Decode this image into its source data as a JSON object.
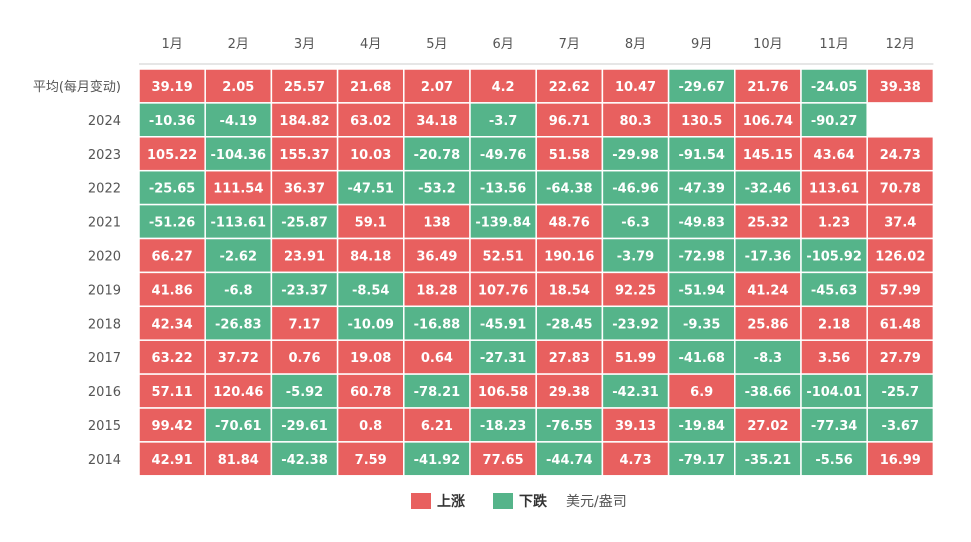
{
  "colors": {
    "up": "#e8605f",
    "down": "#55b48a",
    "border": "#ffffff",
    "axis": "#cccccc"
  },
  "legend": {
    "up_label": "上涨",
    "down_label": "下跌",
    "unit": "美元/盎司"
  },
  "chart_data": {
    "type": "heatmap",
    "title": "",
    "columns": [
      "1月",
      "2月",
      "3月",
      "4月",
      "5月",
      "6月",
      "7月",
      "8月",
      "9月",
      "10月",
      "11月",
      "12月"
    ],
    "rows": [
      "平均(每月变动)",
      "2024",
      "2023",
      "2022",
      "2021",
      "2020",
      "2019",
      "2018",
      "2017",
      "2016",
      "2015",
      "2014"
    ],
    "values": [
      [
        39.19,
        2.05,
        25.57,
        21.68,
        2.07,
        4.2,
        22.62,
        10.47,
        -29.67,
        21.76,
        -24.05,
        39.38
      ],
      [
        -10.36,
        -4.19,
        184.82,
        63.02,
        34.18,
        -3.7,
        96.71,
        80.3,
        130.5,
        106.74,
        -90.27,
        null
      ],
      [
        105.22,
        -104.36,
        155.37,
        10.03,
        -20.78,
        -49.76,
        51.58,
        -29.98,
        -91.54,
        145.15,
        43.64,
        24.73
      ],
      [
        -25.65,
        111.54,
        36.37,
        -47.51,
        -53.2,
        -13.56,
        -64.38,
        -46.96,
        -47.39,
        -32.46,
        113.61,
        70.78
      ],
      [
        -51.26,
        -113.61,
        -25.87,
        59.1,
        138,
        -139.84,
        48.76,
        -6.3,
        -49.83,
        25.32,
        1.23,
        37.4
      ],
      [
        66.27,
        -2.62,
        23.91,
        84.18,
        36.49,
        52.51,
        190.16,
        -3.79,
        -72.98,
        -17.36,
        -105.92,
        126.02
      ],
      [
        41.86,
        -6.8,
        -23.37,
        -8.54,
        18.28,
        107.76,
        18.54,
        92.25,
        -51.94,
        41.24,
        -45.63,
        57.99
      ],
      [
        42.34,
        -26.83,
        7.17,
        -10.09,
        -16.88,
        -45.91,
        -28.45,
        -23.92,
        -9.35,
        25.86,
        2.18,
        61.48
      ],
      [
        63.22,
        37.72,
        0.76,
        19.08,
        0.64,
        -27.31,
        27.83,
        51.99,
        -41.68,
        -8.3,
        3.56,
        27.79
      ],
      [
        57.11,
        120.46,
        -5.92,
        60.78,
        -78.21,
        106.58,
        29.38,
        -42.31,
        6.9,
        -38.66,
        -104.01,
        -25.7
      ],
      [
        99.42,
        -70.61,
        -29.61,
        0.8,
        6.21,
        -18.23,
        -76.55,
        39.13,
        -19.84,
        27.02,
        -77.34,
        -3.67
      ],
      [
        42.91,
        81.84,
        -42.38,
        7.59,
        -41.92,
        77.65,
        -44.74,
        4.73,
        -79.17,
        -35.21,
        -5.56,
        16.99
      ]
    ],
    "legend_position": "bottom-center"
  }
}
